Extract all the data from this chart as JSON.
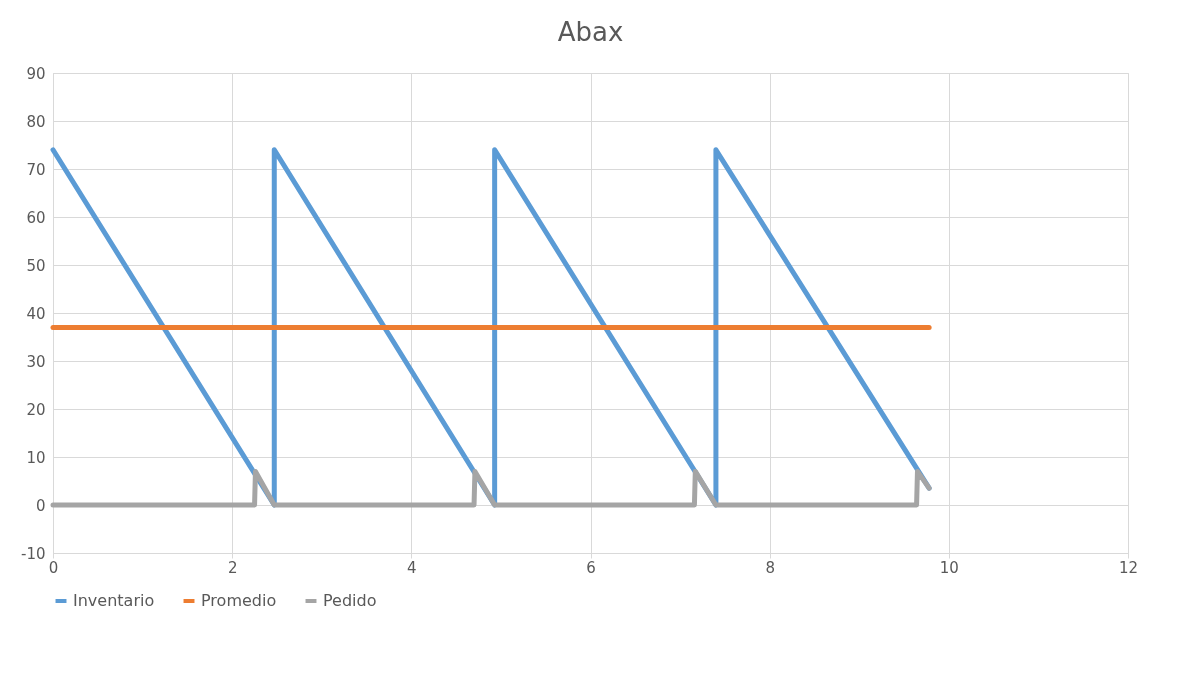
{
  "chart_data": {
    "type": "line",
    "title": "Abax",
    "xlim": [
      0,
      12
    ],
    "xticks": [
      0,
      2,
      4,
      6,
      8,
      10,
      12
    ],
    "ylim": [
      -10,
      90
    ],
    "yticks": [
      -10,
      0,
      10,
      20,
      30,
      40,
      50,
      60,
      70,
      80,
      90
    ],
    "grid": true,
    "legend": "bottom",
    "line_style": "solid",
    "series": [
      {
        "name": "Inventario",
        "color": "#5b9bd5",
        "x": [
          0,
          2.47,
          2.47,
          4.93,
          4.93,
          7.4,
          7.4,
          9.78
        ],
        "values": [
          74,
          0,
          74,
          0,
          74,
          0,
          74,
          3.5
        ]
      },
      {
        "name": "Promedio",
        "color": "#ed7d31",
        "x": [
          0,
          9.78
        ],
        "values": [
          37,
          37
        ]
      },
      {
        "name": "Pedido",
        "color": "#a5a5a5",
        "x": [
          0,
          2.25,
          2.26,
          2.47,
          4.7,
          4.71,
          4.93,
          7.16,
          7.17,
          7.4,
          9.64,
          9.65,
          9.78
        ],
        "values": [
          0,
          0,
          7,
          0,
          0,
          7,
          0,
          0,
          7,
          0,
          0,
          7,
          3.5
        ]
      }
    ]
  }
}
